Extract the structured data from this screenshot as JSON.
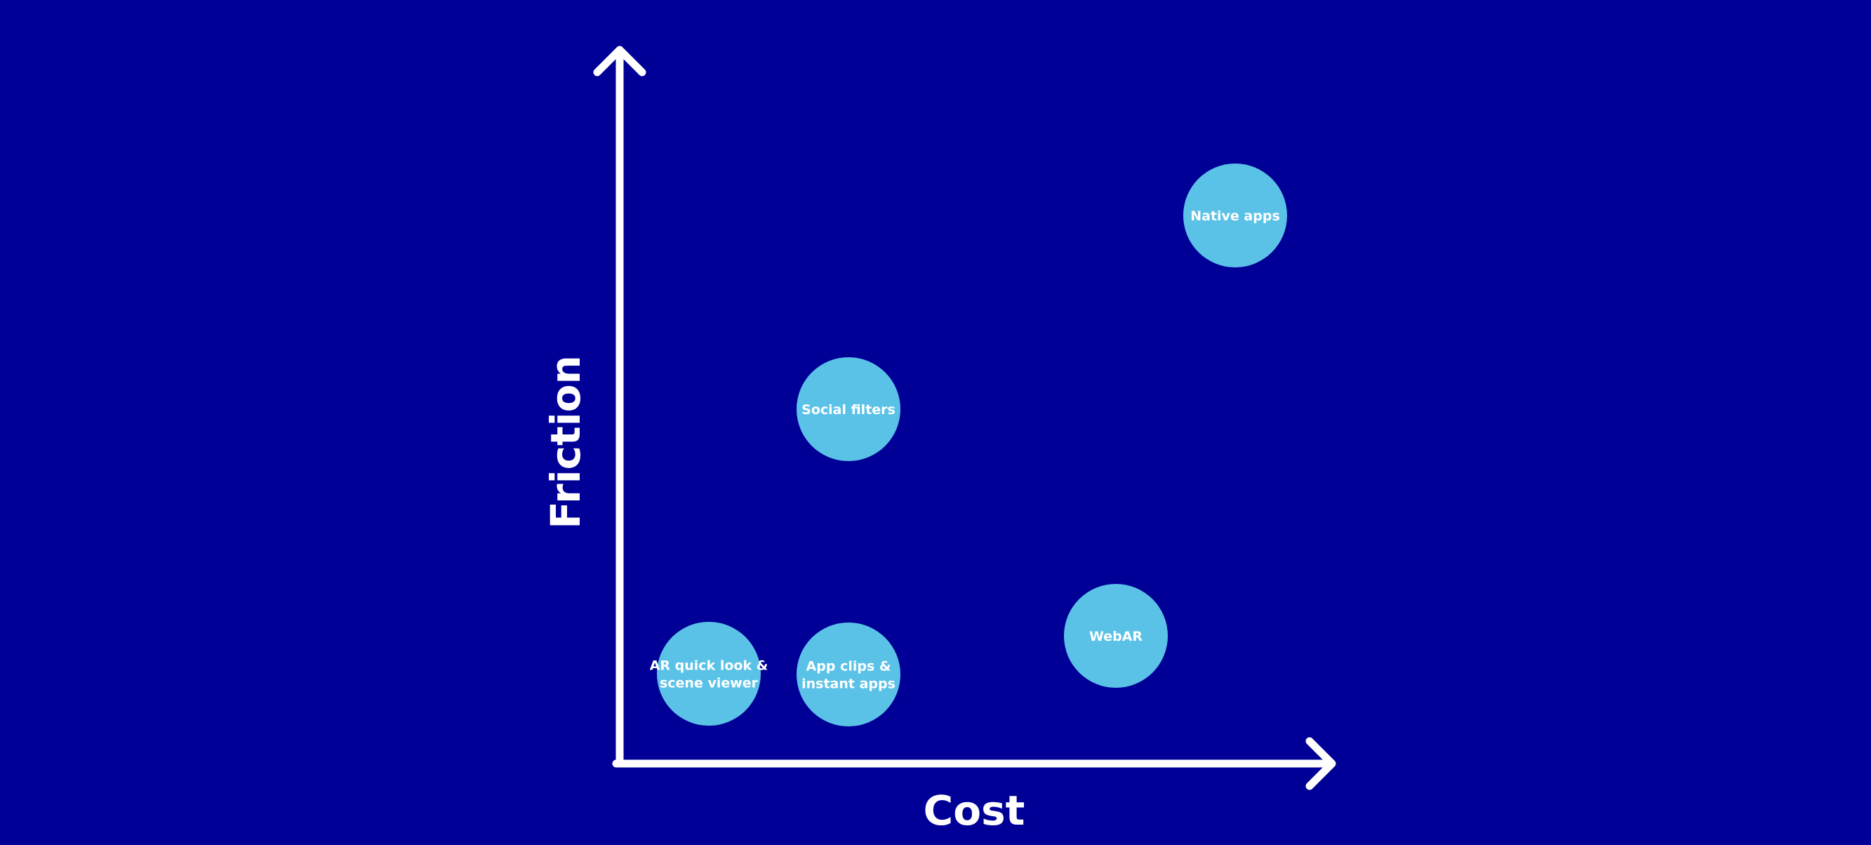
{
  "colors": {
    "background": "#000096",
    "bubble": "#5bc2e7",
    "axis": "#ffffff",
    "text": "#ffffff"
  },
  "axes": {
    "x_label": "Cost",
    "y_label": "Friction"
  },
  "items": [
    {
      "lines": [
        "Native apps"
      ]
    },
    {
      "lines": [
        "Social filters"
      ]
    },
    {
      "lines": [
        "WebAR"
      ]
    },
    {
      "lines": [
        "AR quick look &",
        "scene viewer"
      ]
    },
    {
      "lines": [
        "App clips &",
        "instant apps"
      ]
    }
  ]
}
